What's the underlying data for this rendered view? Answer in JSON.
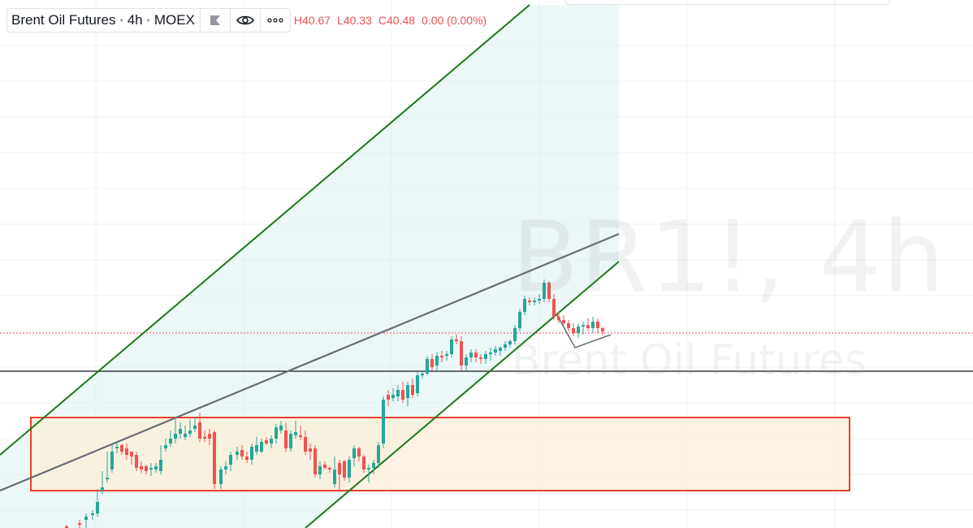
{
  "legend": {
    "symbol_description": "Brent Oil Futures",
    "interval": "4h",
    "exchange": "MOEX",
    "ohlc": {
      "high": "H40.67",
      "low": "L40.33",
      "close": "C40.48",
      "change": "0.00 (0.00%)"
    }
  },
  "watermark": {
    "symbol": "BR1!, 4h",
    "description": "Brent Oil Futures"
  },
  "icons": {
    "flag": "flag-icon",
    "visibility": "eye-icon",
    "more": "more-dots-icon"
  },
  "colors": {
    "up": "#26a69a",
    "down": "#ef5350",
    "channel": "#1b7a1b",
    "channel_fill": "#e0f2f1",
    "zone_border": "#e8412c",
    "zone_fill": "#fdefd8",
    "trendline": "#6a6d78",
    "level": "#131722",
    "grid": "#eef0f3",
    "last_price": "#ef5350"
  }
}
